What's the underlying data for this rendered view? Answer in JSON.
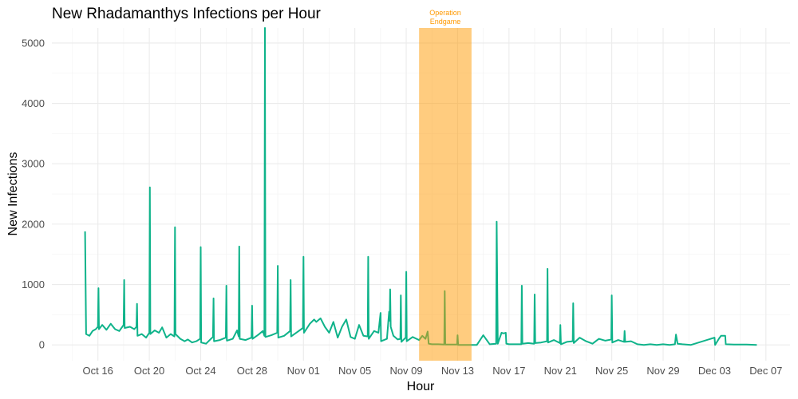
{
  "chart_data": {
    "type": "line",
    "title": "New Rhadamanthys Infections per Hour",
    "xlabel": "Hour",
    "ylabel": "New Infections",
    "x_ticks": [
      "Oct 16",
      "Oct 20",
      "Oct 24",
      "Oct 28",
      "Nov 01",
      "Nov 05",
      "Nov 09",
      "Nov 13",
      "Nov 17",
      "Nov 21",
      "Nov 25",
      "Nov 29",
      "Dec 03",
      "Dec 07"
    ],
    "x_tick_dates": [
      "10-16 00",
      "10-20 00",
      "10-24 00",
      "10-28 00",
      "11-01 00",
      "11-05 00",
      "11-09 00",
      "11-13 00",
      "11-17 00",
      "11-21 00",
      "11-25 00",
      "11-29 00",
      "12-03 00",
      "12-07 00"
    ],
    "y_ticks": [
      "0",
      "1000",
      "2000",
      "3000",
      "4000",
      "5000"
    ],
    "y_tick_values": [
      0,
      1000,
      2000,
      3000,
      4000,
      5000
    ],
    "xlim": [
      "10-12 10",
      "12-08 21"
    ],
    "ylim": [
      -262,
      5250
    ],
    "grid": true,
    "line_color": "#0fb38a",
    "annotation": {
      "label_line1": "Operation",
      "label_line2": "Endgame",
      "start": "11-10 00",
      "end": "11-14 02",
      "color": "#FF9900",
      "text_color": "#FF9900"
    },
    "series": [
      {
        "points": [
          [
            "10-15 00",
            1880
          ],
          [
            "10-15 02",
            180
          ],
          [
            "10-15 08",
            150
          ],
          [
            "10-15 14",
            230
          ],
          [
            "10-15 20",
            260
          ],
          [
            "10-16 00",
            300
          ],
          [
            "10-16 01",
            940
          ],
          [
            "10-16 02",
            260
          ],
          [
            "10-16 08",
            330
          ],
          [
            "10-16 16",
            250
          ],
          [
            "10-17 00",
            350
          ],
          [
            "10-17 08",
            260
          ],
          [
            "10-17 16",
            230
          ],
          [
            "10-18 00",
            330
          ],
          [
            "10-18 01",
            1075
          ],
          [
            "10-18 02",
            280
          ],
          [
            "10-18 12",
            300
          ],
          [
            "10-18 20",
            260
          ],
          [
            "10-19 00",
            300
          ],
          [
            "10-19 01",
            680
          ],
          [
            "10-19 02",
            150
          ],
          [
            "10-19 10",
            180
          ],
          [
            "10-19 18",
            120
          ],
          [
            "10-20 00",
            200
          ],
          [
            "10-20 01",
            2610
          ],
          [
            "10-20 02",
            180
          ],
          [
            "10-20 10",
            240
          ],
          [
            "10-20 18",
            200
          ],
          [
            "10-21 00",
            290
          ],
          [
            "10-21 08",
            120
          ],
          [
            "10-21 16",
            180
          ],
          [
            "10-21 23",
            140
          ],
          [
            "10-22 00",
            1950
          ],
          [
            "10-22 01",
            180
          ],
          [
            "10-22 10",
            100
          ],
          [
            "10-22 18",
            60
          ],
          [
            "10-23 00",
            90
          ],
          [
            "10-23 08",
            40
          ],
          [
            "10-23 16",
            60
          ],
          [
            "10-23 23",
            100
          ],
          [
            "10-24 00",
            1620
          ],
          [
            "10-24 01",
            40
          ],
          [
            "10-24 10",
            20
          ],
          [
            "10-24 18",
            90
          ],
          [
            "10-24 23",
            130
          ],
          [
            "10-25 00",
            770
          ],
          [
            "10-25 01",
            60
          ],
          [
            "10-25 12",
            80
          ],
          [
            "10-25 23",
            120
          ],
          [
            "10-26 00",
            980
          ],
          [
            "10-26 01",
            70
          ],
          [
            "10-26 12",
            100
          ],
          [
            "10-26 20",
            240
          ],
          [
            "10-26 23",
            140
          ],
          [
            "10-27 00",
            1630
          ],
          [
            "10-27 01",
            100
          ],
          [
            "10-27 12",
            80
          ],
          [
            "10-27 23",
            120
          ],
          [
            "10-28 00",
            650
          ],
          [
            "10-28 01",
            100
          ],
          [
            "10-28 12",
            170
          ],
          [
            "10-28 20",
            230
          ],
          [
            "10-28 23",
            150
          ],
          [
            "10-29 00",
            5250
          ],
          [
            "10-29 01",
            130
          ],
          [
            "10-29 12",
            160
          ],
          [
            "10-29 23",
            200
          ],
          [
            "10-30 00",
            1310
          ],
          [
            "10-30 01",
            120
          ],
          [
            "10-30 12",
            150
          ],
          [
            "10-30 23",
            230
          ],
          [
            "10-31 00",
            1075
          ],
          [
            "10-31 01",
            140
          ],
          [
            "10-31 12",
            210
          ],
          [
            "10-31 23",
            280
          ],
          [
            "11-01 00",
            1460
          ],
          [
            "11-01 01",
            200
          ],
          [
            "11-01 12",
            350
          ],
          [
            "11-01 20",
            420
          ],
          [
            "11-02 00",
            380
          ],
          [
            "11-02 08",
            440
          ],
          [
            "11-02 16",
            300
          ],
          [
            "11-03 00",
            200
          ],
          [
            "11-03 08",
            380
          ],
          [
            "11-03 16",
            120
          ],
          [
            "11-04 00",
            300
          ],
          [
            "11-04 08",
            420
          ],
          [
            "11-04 16",
            130
          ],
          [
            "11-05 00",
            100
          ],
          [
            "11-05 08",
            330
          ],
          [
            "11-05 16",
            150
          ],
          [
            "11-06 00",
            140
          ],
          [
            "11-06 01",
            1460
          ],
          [
            "11-06 02",
            100
          ],
          [
            "11-06 12",
            230
          ],
          [
            "11-06 20",
            200
          ],
          [
            "11-07 00",
            530
          ],
          [
            "11-07 01",
            60
          ],
          [
            "11-07 12",
            100
          ],
          [
            "11-07 16",
            550
          ],
          [
            "11-07 17",
            400
          ],
          [
            "11-07 18",
            920
          ],
          [
            "11-07 19",
            300
          ],
          [
            "11-08 00",
            150
          ],
          [
            "11-08 08",
            90
          ],
          [
            "11-08 13",
            100
          ],
          [
            "11-08 14",
            820
          ],
          [
            "11-08 15",
            50
          ],
          [
            "11-08 23",
            120
          ],
          [
            "11-09 00",
            1210
          ],
          [
            "11-09 01",
            60
          ],
          [
            "11-09 12",
            130
          ],
          [
            "11-10 00",
            80
          ],
          [
            "11-10 06",
            150
          ],
          [
            "11-10 12",
            100
          ],
          [
            "11-10 16",
            220
          ],
          [
            "11-10 18",
            20
          ],
          [
            "11-11 00",
            10
          ],
          [
            "11-11 12",
            10
          ],
          [
            "11-11 23",
            5
          ],
          [
            "11-12 00",
            890
          ],
          [
            "11-12 01",
            5
          ],
          [
            "11-12 12",
            5
          ],
          [
            "11-12 23",
            5
          ],
          [
            "11-13 00",
            160
          ],
          [
            "11-13 01",
            0
          ],
          [
            "11-14 12",
            0
          ],
          [
            "11-15 00",
            160
          ],
          [
            "11-15 12",
            10
          ],
          [
            "11-16 00",
            20
          ],
          [
            "11-16 01",
            2040
          ],
          [
            "11-16 03",
            20
          ],
          [
            "11-16 10",
            200
          ],
          [
            "11-16 14",
            190
          ],
          [
            "11-16 18",
            200
          ],
          [
            "11-16 19",
            20
          ],
          [
            "11-17 00",
            10
          ],
          [
            "11-17 12",
            10
          ],
          [
            "11-17 23",
            10
          ],
          [
            "11-18 00",
            980
          ],
          [
            "11-18 01",
            20
          ],
          [
            "11-18 12",
            30
          ],
          [
            "11-18 23",
            20
          ],
          [
            "11-19 00",
            835
          ],
          [
            "11-19 01",
            30
          ],
          [
            "11-19 12",
            40
          ],
          [
            "11-19 23",
            60
          ],
          [
            "11-20 00",
            1260
          ],
          [
            "11-20 01",
            40
          ],
          [
            "11-20 12",
            80
          ],
          [
            "11-20 23",
            30
          ],
          [
            "11-21 00",
            330
          ],
          [
            "11-21 01",
            10
          ],
          [
            "11-21 12",
            50
          ],
          [
            "11-21 23",
            60
          ],
          [
            "11-22 00",
            690
          ],
          [
            "11-22 01",
            30
          ],
          [
            "11-22 12",
            120
          ],
          [
            "11-23 00",
            60
          ],
          [
            "11-23 12",
            20
          ],
          [
            "11-24 00",
            100
          ],
          [
            "11-24 12",
            70
          ],
          [
            "11-24 23",
            90
          ],
          [
            "11-25 00",
            820
          ],
          [
            "11-25 01",
            40
          ],
          [
            "11-25 12",
            80
          ],
          [
            "11-25 23",
            50
          ],
          [
            "11-26 00",
            230
          ],
          [
            "11-26 01",
            50
          ],
          [
            "11-26 12",
            60
          ],
          [
            "11-27 00",
            10
          ],
          [
            "11-27 12",
            0
          ],
          [
            "11-28 00",
            10
          ],
          [
            "11-28 12",
            0
          ],
          [
            "11-29 00",
            10
          ],
          [
            "11-29 12",
            0
          ],
          [
            "11-29 22",
            10
          ],
          [
            "11-30 00",
            170
          ],
          [
            "11-30 03",
            20
          ],
          [
            "11-30 12",
            10
          ],
          [
            "12-01 04",
            0
          ],
          [
            "12-03 00",
            120
          ],
          [
            "12-03 01",
            0
          ],
          [
            "12-03 08",
            100
          ],
          [
            "12-03 12",
            150
          ],
          [
            "12-03 20",
            150
          ],
          [
            "12-03 21",
            10
          ],
          [
            "12-04 12",
            5
          ],
          [
            "12-05 12",
            5
          ],
          [
            "12-06 07",
            0
          ]
        ]
      }
    ]
  }
}
